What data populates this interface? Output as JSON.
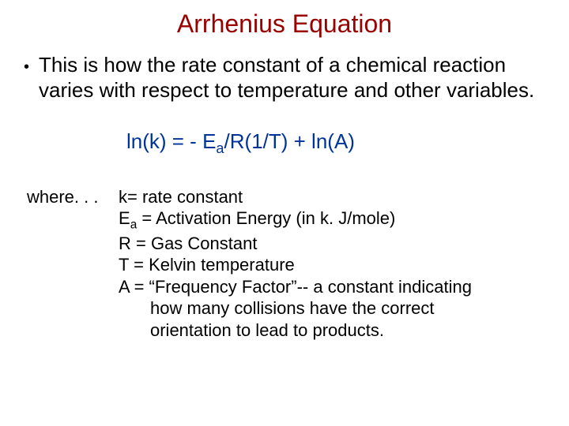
{
  "colors": {
    "title": "#990000",
    "body": "#000000",
    "equation": "#003399",
    "background": "#ffffff"
  },
  "fontsizes": {
    "title": 32,
    "body": 26,
    "definitions": 22
  },
  "title": "Arrhenius Equation",
  "bullet": "This is how the rate constant of a chemical reaction varies with respect to temperature and other variables.",
  "equation": {
    "pre": "ln(k) = - E",
    "sub": "a",
    "post": "/R(1/T) + ln(A)"
  },
  "where_label": "where. . .",
  "definitions": {
    "k": "k= rate constant",
    "Ea_pre": "E",
    "Ea_sub": "a",
    "Ea_post": " = Activation Energy (in k. J/mole)",
    "R": "R = Gas Constant",
    "T": "T = Kelvin temperature",
    "A_line1": "A = “Frequency Factor”-- a constant indicating",
    "A_line2": "how many collisions have the correct",
    "A_line3": "orientation to lead to products."
  }
}
